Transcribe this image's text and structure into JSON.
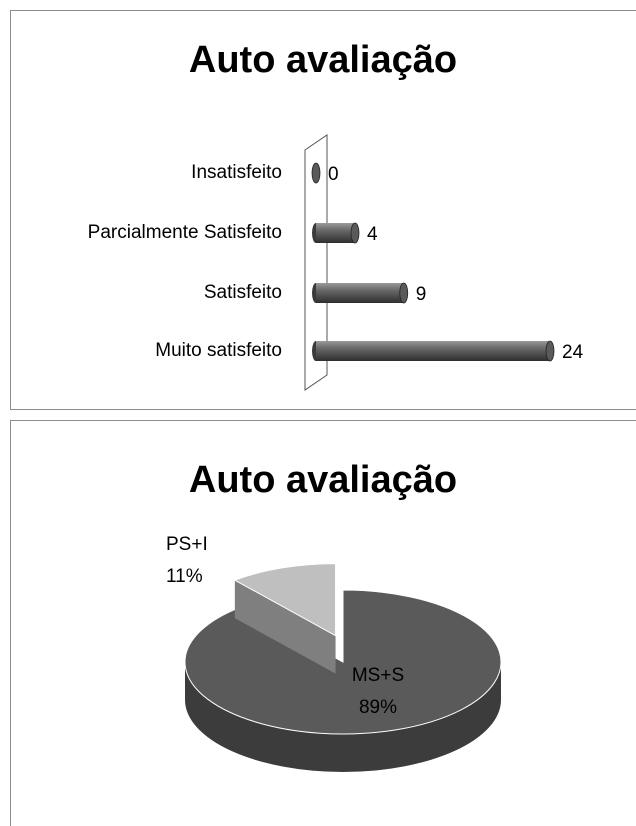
{
  "chart_data": [
    {
      "type": "bar",
      "orientation": "horizontal",
      "title": "Auto avaliação",
      "categories": [
        "Insatisfeito",
        "Parcialmente Satisfeito",
        "Satisfeito",
        "Muito satisfeito"
      ],
      "values": [
        0,
        4,
        9,
        24
      ],
      "color": "#5a5a5a"
    },
    {
      "type": "pie",
      "title": "Auto avaliação",
      "categories": [
        "MS+S",
        "PS+I"
      ],
      "values": [
        89,
        11
      ],
      "value_labels": [
        "89%",
        "11%"
      ],
      "colors": [
        "#5a5a5a",
        "#bfbfbf"
      ]
    }
  ]
}
